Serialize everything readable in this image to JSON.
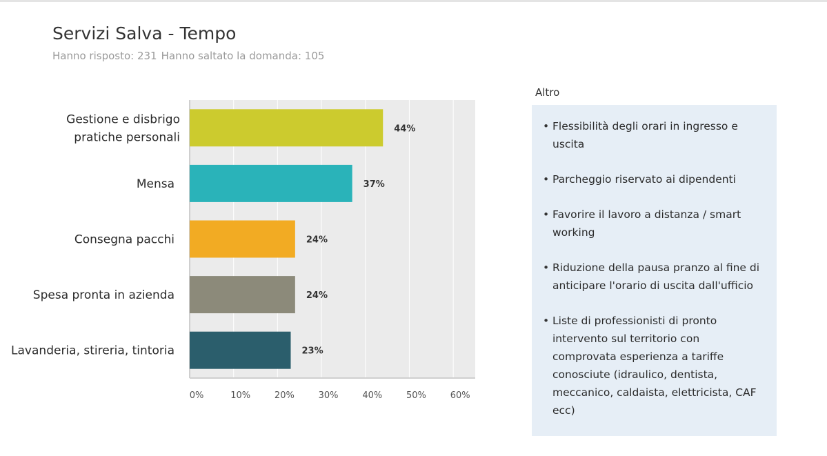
{
  "header": {
    "title": "Servizi Salva - Tempo",
    "answered": "Hanno risposto: 231",
    "skipped": "Hanno saltato la domanda: 105"
  },
  "chart_data": {
    "type": "bar",
    "orientation": "horizontal",
    "categories": [
      [
        "Gestione e disbrigo",
        "pratiche personali"
      ],
      [
        "Mensa"
      ],
      [
        "Consegna pacchi"
      ],
      [
        "Spesa pronta in azienda"
      ],
      [
        "Lavanderia, stireria, tintoria"
      ]
    ],
    "values": [
      44,
      37,
      24,
      24,
      23
    ],
    "data_labels": [
      "44%",
      "37%",
      "24%",
      "24%",
      "23%"
    ],
    "bar_colors": [
      "#cccb2e",
      "#2ab3b9",
      "#f2ab23",
      "#8c8a7a",
      "#2b5e6c"
    ],
    "xlim": [
      0,
      65
    ],
    "x_ticks": [
      0,
      10,
      20,
      30,
      40,
      50,
      60
    ],
    "x_tick_labels": [
      "0%",
      "10%",
      "20%",
      "30%",
      "40%",
      "50%",
      "60%"
    ],
    "grid": true,
    "legend": "none"
  },
  "side_panel": {
    "title": "Altro",
    "items": [
      "Flessibilità degli orari in ingresso e uscita",
      "Parcheggio riservato ai dipendenti",
      "Favorire il lavoro a distanza / smart working",
      "Riduzione della pausa pranzo al fine di anticipare l'orario di uscita dall'ufficio",
      "Liste di professionisti di pronto intervento sul territorio con comprovata esperienza a tariffe conosciute (idraulico, dentista, meccanico, caldaista, elettricista, CAF ecc)"
    ]
  },
  "colors": {
    "plot_background": "#ebebeb",
    "panel_background": "#e6eef6"
  }
}
